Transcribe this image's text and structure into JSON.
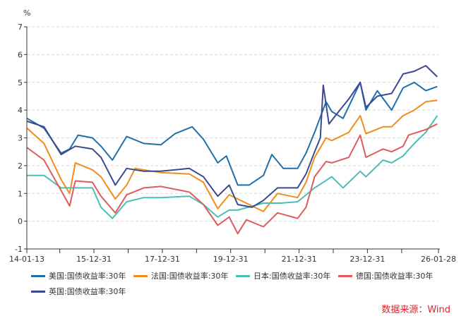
{
  "chart_data": {
    "type": "line",
    "title": "",
    "ylabel": "%",
    "xlabel": "",
    "ylim": [
      -1,
      7
    ],
    "yticks": [
      -1,
      0,
      1,
      2,
      3,
      4,
      5,
      6,
      7
    ],
    "xlim": [
      "2014-01-13",
      "2026-01-28"
    ],
    "xtick_labels": [
      {
        "date": "2014-01-13",
        "label": "14-01-13"
      },
      {
        "date": "2015-12-31",
        "label": "15-12-31"
      },
      {
        "date": "2017-12-31",
        "label": "17-12-31"
      },
      {
        "date": "2019-12-31",
        "label": "19-12-31"
      },
      {
        "date": "2021-12-31",
        "label": "21-12-31"
      },
      {
        "date": "2023-12-31",
        "label": "23-12-31"
      },
      {
        "date": "2026-01-28",
        "label": "26-01-28"
      }
    ],
    "xtick_marks": [
      "2014-01-13",
      "2014-12-31",
      "2015-12-31",
      "2016-12-31",
      "2017-12-31",
      "2018-12-31",
      "2019-12-31",
      "2020-12-31",
      "2021-12-31",
      "2022-12-31",
      "2023-12-31",
      "2024-12-31",
      "2026-01-28"
    ],
    "grid": "horizontal-dashed",
    "legend_position": "bottom",
    "series": [
      {
        "name": "美国:国债收益率:30年",
        "color": "#1f6fa8",
        "x": [
          "2014-01",
          "2014-07",
          "2015-01",
          "2015-04",
          "2015-07",
          "2015-12",
          "2016-03",
          "2016-07",
          "2016-12",
          "2017-06",
          "2017-12",
          "2018-05",
          "2018-11",
          "2019-03",
          "2019-08",
          "2019-11",
          "2020-03",
          "2020-07",
          "2020-12",
          "2021-03",
          "2021-07",
          "2021-12",
          "2022-03",
          "2022-06",
          "2022-10",
          "2022-12",
          "2023-04",
          "2023-10",
          "2023-12",
          "2024-04",
          "2024-09",
          "2025-01",
          "2025-05",
          "2025-09",
          "2026-01"
        ],
        "values": [
          3.7,
          3.35,
          2.45,
          2.6,
          3.1,
          3.0,
          2.7,
          2.2,
          3.05,
          2.8,
          2.75,
          3.15,
          3.4,
          2.95,
          2.1,
          2.35,
          1.3,
          1.3,
          1.65,
          2.4,
          1.9,
          1.9,
          2.45,
          3.2,
          4.3,
          3.95,
          3.7,
          5.0,
          4.0,
          4.7,
          4.0,
          4.8,
          5.0,
          4.7,
          4.85
        ]
      },
      {
        "name": "法国:国债收益率:30年",
        "color": "#f28c1d",
        "x": [
          "2014-01",
          "2014-07",
          "2015-01",
          "2015-04",
          "2015-06",
          "2015-12",
          "2016-03",
          "2016-08",
          "2016-12",
          "2017-03",
          "2017-12",
          "2018-10",
          "2019-03",
          "2019-08",
          "2019-12",
          "2020-03",
          "2020-08",
          "2020-12",
          "2021-05",
          "2021-12",
          "2022-03",
          "2022-06",
          "2022-10",
          "2022-12",
          "2023-06",
          "2023-10",
          "2023-12",
          "2024-06",
          "2024-09",
          "2025-01",
          "2025-05",
          "2025-09",
          "2026-01"
        ],
        "values": [
          3.35,
          2.8,
          1.5,
          1.0,
          2.1,
          1.85,
          1.6,
          0.8,
          1.3,
          1.9,
          1.75,
          1.7,
          1.4,
          0.45,
          0.95,
          0.8,
          0.55,
          0.35,
          1.0,
          0.85,
          1.4,
          2.3,
          3.0,
          2.9,
          3.2,
          3.8,
          3.15,
          3.4,
          3.4,
          3.8,
          4.0,
          4.3,
          4.35
        ]
      },
      {
        "name": "日本:国债收益率:30年",
        "color": "#4dbdb8",
        "x": [
          "2014-01",
          "2014-07",
          "2015-01",
          "2015-04",
          "2015-12",
          "2016-03",
          "2016-07",
          "2016-12",
          "2017-06",
          "2017-12",
          "2018-10",
          "2019-03",
          "2019-08",
          "2019-12",
          "2020-03",
          "2020-12",
          "2021-06",
          "2021-12",
          "2022-06",
          "2022-12",
          "2023-04",
          "2023-10",
          "2023-12",
          "2024-06",
          "2024-09",
          "2025-01",
          "2025-05",
          "2025-09",
          "2026-01"
        ],
        "values": [
          1.65,
          1.65,
          1.2,
          1.2,
          1.2,
          0.5,
          0.1,
          0.7,
          0.85,
          0.85,
          0.9,
          0.6,
          0.15,
          0.4,
          0.4,
          0.65,
          0.65,
          0.7,
          1.2,
          1.6,
          1.2,
          1.8,
          1.6,
          2.2,
          2.1,
          2.35,
          2.8,
          3.2,
          3.8
        ]
      },
      {
        "name": "德国:国债收益率:30年",
        "color": "#e05a5e",
        "x": [
          "2014-01",
          "2014-07",
          "2015-01",
          "2015-04",
          "2015-06",
          "2015-12",
          "2016-03",
          "2016-08",
          "2016-12",
          "2017-06",
          "2017-12",
          "2018-10",
          "2019-03",
          "2019-08",
          "2019-12",
          "2020-03",
          "2020-06",
          "2020-12",
          "2021-05",
          "2021-12",
          "2022-03",
          "2022-06",
          "2022-10",
          "2022-12",
          "2023-06",
          "2023-10",
          "2023-12",
          "2024-06",
          "2024-09",
          "2025-01",
          "2025-03",
          "2025-09",
          "2026-01"
        ],
        "values": [
          2.65,
          2.2,
          1.1,
          0.55,
          1.45,
          1.4,
          0.9,
          0.3,
          0.95,
          1.2,
          1.25,
          1.05,
          0.6,
          -0.15,
          0.15,
          -0.45,
          0.05,
          -0.2,
          0.3,
          0.1,
          0.5,
          1.6,
          2.15,
          2.1,
          2.3,
          3.1,
          2.3,
          2.6,
          2.5,
          2.7,
          3.1,
          3.3,
          3.5
        ]
      },
      {
        "name": "英国:国债收益率:30年",
        "color": "#3b4a8f",
        "x": [
          "2014-01",
          "2014-07",
          "2015-01",
          "2015-06",
          "2015-12",
          "2016-03",
          "2016-08",
          "2016-12",
          "2017-06",
          "2017-12",
          "2018-10",
          "2019-03",
          "2019-08",
          "2019-12",
          "2020-03",
          "2020-08",
          "2020-12",
          "2021-05",
          "2021-12",
          "2022-03",
          "2022-06",
          "2022-08",
          "2022-09",
          "2022-11",
          "2023-02",
          "2023-06",
          "2023-10",
          "2023-12",
          "2024-04",
          "2024-09",
          "2025-01",
          "2025-05",
          "2025-09",
          "2026-01"
        ],
        "values": [
          3.6,
          3.4,
          2.4,
          2.7,
          2.6,
          2.3,
          1.3,
          1.9,
          1.8,
          1.8,
          1.9,
          1.6,
          0.9,
          1.3,
          0.6,
          0.5,
          0.75,
          1.2,
          1.2,
          1.7,
          2.5,
          3.0,
          4.9,
          3.5,
          3.9,
          4.4,
          5.0,
          4.1,
          4.5,
          4.6,
          5.3,
          5.4,
          5.6,
          5.2
        ]
      }
    ]
  },
  "source": "数据来源：Wind"
}
